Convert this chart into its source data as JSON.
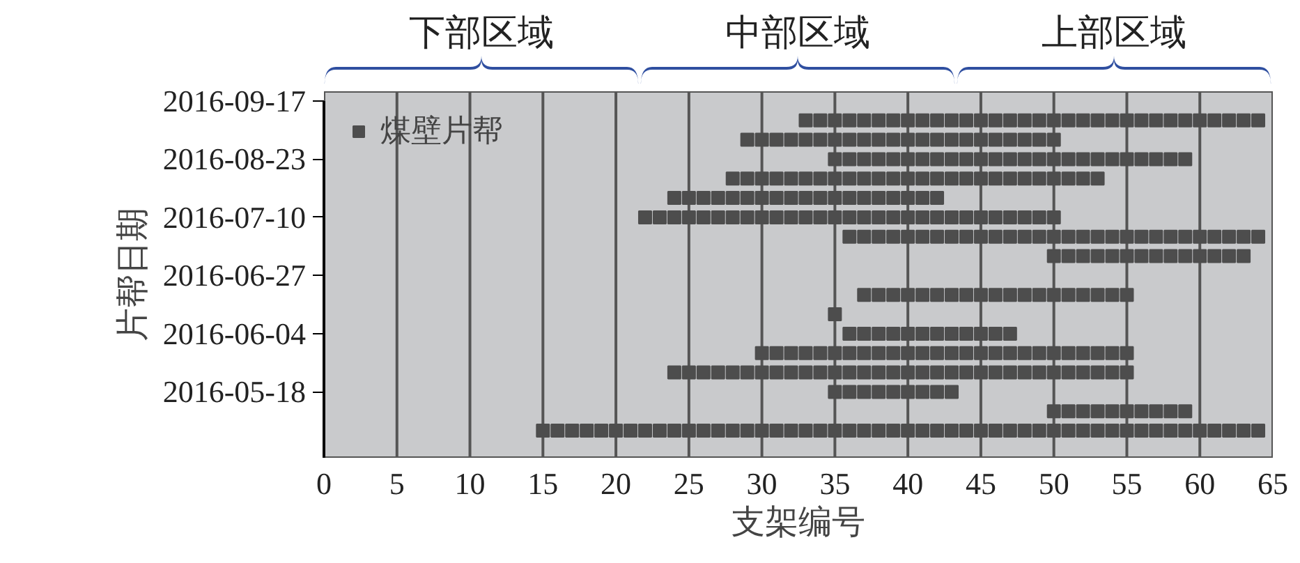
{
  "chart_data": {
    "type": "scatter",
    "orientation": "horizontal",
    "xlabel": "支架编号",
    "ylabel": "片帮日期",
    "xlim": [
      0,
      65
    ],
    "xticks": [
      0,
      5,
      10,
      15,
      20,
      25,
      30,
      35,
      40,
      45,
      50,
      55,
      60,
      65
    ],
    "categories": [
      "2016-09-17",
      null,
      null,
      "2016-08-23",
      null,
      null,
      "2016-07-10",
      null,
      null,
      "2016-06-27",
      null,
      null,
      "2016-06-04",
      null,
      null,
      "2016-05-18",
      null,
      null
    ],
    "grid": "x",
    "legend": "top left",
    "marker": "square",
    "annotations": [
      "下部区域",
      "中部区域",
      "上部区域"
    ],
    "series": [
      {
        "name": "煤壁片帮",
        "color": "#4d4d4d",
        "values": [
          null,
          null,
          null,
          null,
          null,
          null,
          null,
          null,
          null,
          null,
          null,
          null,
          null,
          null,
          null,
          null,
          null,
          15
        ]
      },
      {
        "color": "#4d4d4d",
        "values": [
          null,
          null,
          null,
          null,
          null,
          null,
          null,
          null,
          null,
          null,
          null,
          null,
          null,
          null,
          null,
          null,
          null,
          16
        ]
      },
      {
        "color": "#4d4d4d",
        "values": [
          null,
          null,
          null,
          null,
          null,
          null,
          null,
          null,
          null,
          null,
          null,
          null,
          null,
          null,
          null,
          null,
          null,
          17
        ]
      },
      {
        "color": "#4d4d4d",
        "values": [
          null,
          null,
          null,
          null,
          null,
          null,
          null,
          null,
          null,
          null,
          null,
          null,
          null,
          null,
          null,
          null,
          null,
          18
        ]
      },
      {
        "color": "#4d4d4d",
        "values": [
          null,
          null,
          null,
          null,
          null,
          null,
          null,
          null,
          null,
          null,
          null,
          null,
          null,
          null,
          null,
          null,
          null,
          19
        ]
      },
      {
        "color": "#4d4d4d",
        "values": [
          null,
          null,
          null,
          null,
          null,
          null,
          null,
          null,
          null,
          null,
          null,
          null,
          null,
          null,
          null,
          null,
          null,
          20
        ]
      },
      {
        "color": "#4d4d4d",
        "values": [
          null,
          null,
          null,
          null,
          null,
          null,
          null,
          null,
          null,
          null,
          null,
          null,
          null,
          null,
          null,
          null,
          null,
          21
        ]
      },
      {
        "color": "#4d4d4d",
        "values": [
          null,
          null,
          null,
          null,
          null,
          null,
          22,
          null,
          null,
          null,
          null,
          null,
          null,
          null,
          null,
          null,
          null,
          22
        ]
      },
      {
        "color": "#4d4d4d",
        "values": [
          null,
          null,
          null,
          null,
          null,
          null,
          23,
          null,
          null,
          null,
          null,
          null,
          null,
          null,
          null,
          null,
          null,
          23
        ]
      },
      {
        "color": "#4d4d4d",
        "values": [
          null,
          null,
          null,
          null,
          null,
          24,
          24,
          null,
          null,
          null,
          null,
          null,
          null,
          null,
          24,
          null,
          null,
          24
        ]
      },
      {
        "color": "#4d4d4d",
        "values": [
          null,
          null,
          null,
          null,
          null,
          25,
          25,
          null,
          null,
          null,
          null,
          null,
          null,
          null,
          25,
          null,
          null,
          25
        ]
      },
      {
        "color": "#4d4d4d",
        "values": [
          null,
          null,
          null,
          null,
          null,
          26,
          26,
          null,
          null,
          null,
          null,
          null,
          null,
          null,
          26,
          null,
          null,
          26
        ]
      },
      {
        "color": "#4d4d4d",
        "values": [
          null,
          null,
          null,
          null,
          null,
          27,
          27,
          null,
          null,
          null,
          null,
          null,
          null,
          null,
          27,
          null,
          null,
          27
        ]
      },
      {
        "color": "#4d4d4d",
        "values": [
          null,
          null,
          null,
          null,
          28,
          28,
          28,
          null,
          null,
          null,
          null,
          null,
          null,
          null,
          28,
          null,
          null,
          28
        ]
      },
      {
        "color": "#4d4d4d",
        "values": [
          null,
          null,
          29,
          null,
          29,
          29,
          29,
          null,
          null,
          null,
          null,
          null,
          null,
          null,
          29,
          null,
          null,
          29
        ]
      },
      {
        "color": "#4d4d4d",
        "values": [
          null,
          null,
          30,
          null,
          30,
          30,
          30,
          null,
          null,
          null,
          null,
          null,
          null,
          30,
          30,
          null,
          null,
          30
        ]
      },
      {
        "color": "#4d4d4d",
        "values": [
          null,
          null,
          31,
          null,
          31,
          31,
          31,
          null,
          null,
          null,
          null,
          null,
          null,
          31,
          31,
          null,
          null,
          31
        ]
      },
      {
        "color": "#4d4d4d",
        "values": [
          null,
          null,
          32,
          null,
          32,
          32,
          32,
          null,
          null,
          null,
          null,
          null,
          null,
          32,
          32,
          null,
          null,
          32
        ]
      },
      {
        "color": "#4d4d4d",
        "values": [
          null,
          33,
          33,
          null,
          33,
          33,
          33,
          null,
          null,
          null,
          null,
          null,
          null,
          33,
          33,
          null,
          null,
          33
        ]
      },
      {
        "color": "#4d4d4d",
        "values": [
          null,
          34,
          34,
          null,
          34,
          34,
          34,
          null,
          null,
          null,
          null,
          null,
          null,
          34,
          34,
          null,
          null,
          34
        ]
      },
      {
        "color": "#4d4d4d",
        "values": [
          null,
          35,
          35,
          35,
          35,
          35,
          35,
          null,
          null,
          null,
          null,
          35,
          null,
          35,
          35,
          35,
          null,
          35
        ]
      },
      {
        "color": "#4d4d4d",
        "values": [
          null,
          36,
          36,
          36,
          36,
          36,
          36,
          36,
          null,
          null,
          null,
          null,
          36,
          36,
          36,
          36,
          null,
          36
        ]
      },
      {
        "color": "#4d4d4d",
        "values": [
          null,
          37,
          37,
          37,
          37,
          37,
          37,
          37,
          null,
          null,
          37,
          null,
          37,
          37,
          37,
          37,
          null,
          37
        ]
      },
      {
        "color": "#4d4d4d",
        "values": [
          null,
          38,
          38,
          38,
          38,
          38,
          38,
          38,
          null,
          null,
          38,
          null,
          38,
          38,
          38,
          38,
          null,
          38
        ]
      },
      {
        "color": "#4d4d4d",
        "values": [
          null,
          39,
          39,
          39,
          39,
          39,
          39,
          39,
          null,
          null,
          39,
          null,
          39,
          39,
          39,
          39,
          null,
          39
        ]
      },
      {
        "color": "#4d4d4d",
        "values": [
          null,
          40,
          40,
          40,
          40,
          40,
          40,
          40,
          null,
          null,
          40,
          null,
          40,
          40,
          40,
          40,
          null,
          40
        ]
      },
      {
        "color": "#4d4d4d",
        "values": [
          null,
          41,
          41,
          41,
          41,
          41,
          41,
          41,
          null,
          null,
          41,
          null,
          41,
          41,
          41,
          41,
          null,
          41
        ]
      },
      {
        "color": "#4d4d4d",
        "values": [
          null,
          42,
          42,
          42,
          42,
          42,
          42,
          42,
          null,
          null,
          42,
          null,
          42,
          42,
          42,
          42,
          null,
          42
        ]
      },
      {
        "color": "#4d4d4d",
        "values": [
          null,
          43,
          43,
          43,
          43,
          null,
          43,
          43,
          null,
          null,
          43,
          null,
          43,
          43,
          43,
          43,
          null,
          43
        ]
      },
      {
        "color": "#4d4d4d",
        "values": [
          null,
          44,
          44,
          44,
          44,
          null,
          44,
          44,
          null,
          null,
          44,
          null,
          44,
          44,
          44,
          null,
          null,
          44
        ]
      },
      {
        "color": "#4d4d4d",
        "values": [
          null,
          45,
          45,
          45,
          45,
          null,
          45,
          45,
          null,
          null,
          45,
          null,
          45,
          45,
          45,
          null,
          null,
          45
        ]
      },
      {
        "color": "#4d4d4d",
        "values": [
          null,
          46,
          46,
          46,
          46,
          null,
          46,
          46,
          null,
          null,
          46,
          null,
          46,
          46,
          46,
          null,
          null,
          46
        ]
      },
      {
        "color": "#4d4d4d",
        "values": [
          null,
          47,
          47,
          47,
          47,
          null,
          47,
          47,
          null,
          null,
          47,
          null,
          47,
          47,
          47,
          null,
          null,
          47
        ]
      },
      {
        "color": "#4d4d4d",
        "values": [
          null,
          48,
          48,
          48,
          48,
          null,
          48,
          48,
          null,
          null,
          48,
          null,
          null,
          48,
          48,
          null,
          null,
          48
        ]
      },
      {
        "color": "#4d4d4d",
        "values": [
          null,
          49,
          49,
          49,
          49,
          null,
          49,
          49,
          null,
          null,
          49,
          null,
          null,
          49,
          49,
          null,
          null,
          49
        ]
      },
      {
        "color": "#4d4d4d",
        "values": [
          null,
          50,
          50,
          50,
          50,
          null,
          50,
          50,
          50,
          null,
          50,
          null,
          null,
          50,
          50,
          null,
          50,
          50
        ]
      },
      {
        "color": "#4d4d4d",
        "values": [
          null,
          51,
          null,
          51,
          51,
          null,
          null,
          51,
          51,
          null,
          51,
          null,
          null,
          51,
          51,
          null,
          51,
          51
        ]
      },
      {
        "color": "#4d4d4d",
        "values": [
          null,
          52,
          null,
          52,
          52,
          null,
          null,
          52,
          52,
          null,
          52,
          null,
          null,
          52,
          52,
          null,
          52,
          52
        ]
      },
      {
        "color": "#4d4d4d",
        "values": [
          null,
          53,
          null,
          53,
          53,
          null,
          null,
          53,
          53,
          null,
          53,
          null,
          null,
          53,
          53,
          null,
          53,
          53
        ]
      },
      {
        "color": "#4d4d4d",
        "values": [
          null,
          54,
          null,
          54,
          null,
          null,
          null,
          54,
          54,
          null,
          54,
          null,
          null,
          54,
          54,
          null,
          54,
          54
        ]
      },
      {
        "color": "#4d4d4d",
        "values": [
          null,
          55,
          null,
          55,
          null,
          null,
          null,
          55,
          55,
          null,
          55,
          null,
          null,
          55,
          55,
          null,
          55,
          55
        ]
      },
      {
        "color": "#4d4d4d",
        "values": [
          null,
          56,
          null,
          56,
          null,
          null,
          null,
          56,
          56,
          null,
          null,
          null,
          null,
          null,
          null,
          null,
          56,
          56
        ]
      },
      {
        "color": "#4d4d4d",
        "values": [
          null,
          57,
          null,
          57,
          null,
          null,
          null,
          57,
          57,
          null,
          null,
          null,
          null,
          null,
          null,
          null,
          57,
          57
        ]
      },
      {
        "color": "#4d4d4d",
        "values": [
          null,
          58,
          null,
          58,
          null,
          null,
          null,
          58,
          58,
          null,
          null,
          null,
          null,
          null,
          null,
          null,
          58,
          58
        ]
      },
      {
        "color": "#4d4d4d",
        "values": [
          null,
          59,
          null,
          59,
          null,
          null,
          null,
          59,
          59,
          null,
          null,
          null,
          null,
          null,
          null,
          null,
          59,
          59
        ]
      },
      {
        "color": "#4d4d4d",
        "values": [
          null,
          60,
          null,
          null,
          null,
          null,
          null,
          60,
          60,
          null,
          null,
          null,
          null,
          null,
          null,
          null,
          null,
          60
        ]
      },
      {
        "color": "#4d4d4d",
        "values": [
          null,
          61,
          null,
          null,
          null,
          null,
          null,
          61,
          61,
          null,
          null,
          null,
          null,
          null,
          null,
          null,
          null,
          61
        ]
      },
      {
        "color": "#4d4d4d",
        "values": [
          null,
          62,
          null,
          null,
          null,
          null,
          null,
          62,
          62,
          null,
          null,
          null,
          null,
          null,
          null,
          null,
          null,
          62
        ]
      },
      {
        "color": "#4d4d4d",
        "values": [
          null,
          63,
          null,
          null,
          null,
          null,
          null,
          63,
          63,
          null,
          null,
          null,
          null,
          null,
          null,
          null,
          null,
          63
        ]
      },
      {
        "color": "#4d4d4d",
        "values": [
          null,
          64,
          null,
          null,
          null,
          null,
          null,
          64,
          null,
          null,
          null,
          null,
          null,
          null,
          null,
          null,
          null,
          64
        ]
      }
    ]
  }
}
